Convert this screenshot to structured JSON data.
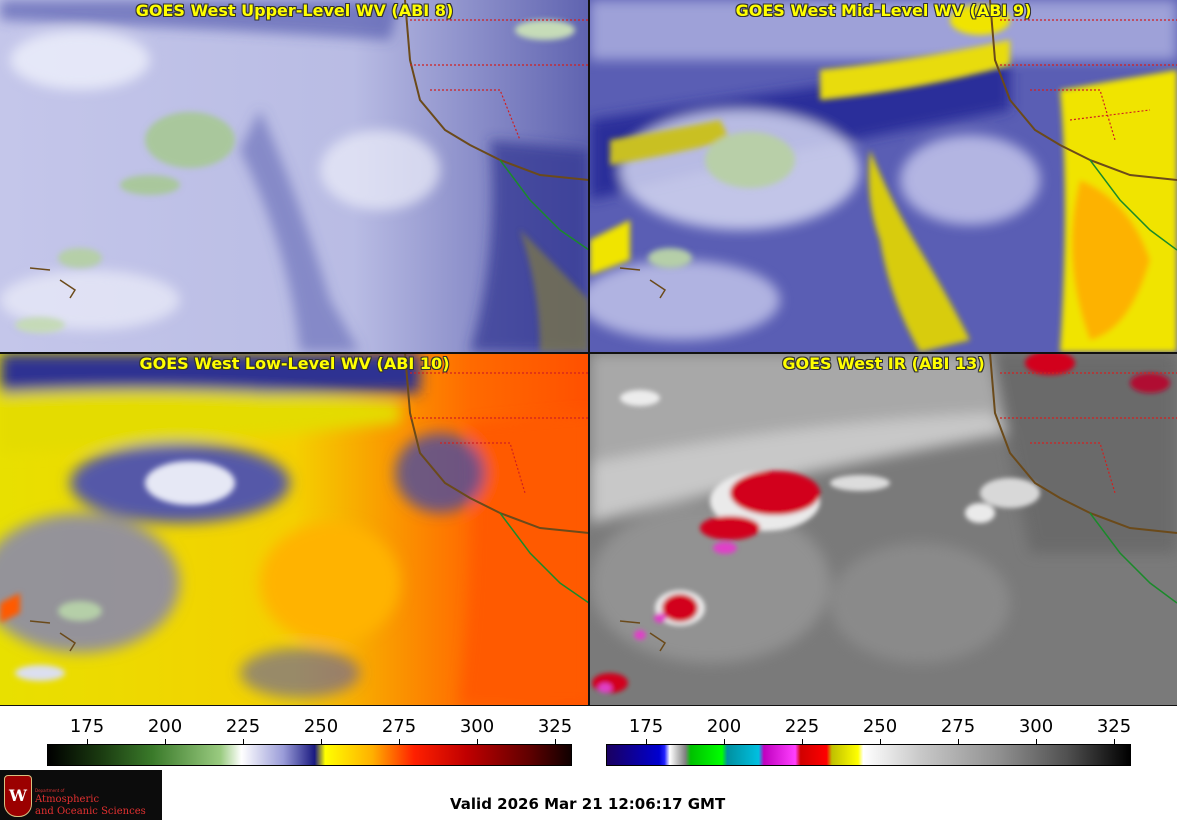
{
  "panels": [
    {
      "title": "GOES West Upper-Level WV (ABI 8)"
    },
    {
      "title": "GOES West Mid-Level WV (ABI 9)"
    },
    {
      "title": "GOES West Low-Level WV (ABI 10)"
    },
    {
      "title": "GOES West IR (ABI 13)"
    }
  ],
  "colorbars": [
    {
      "name": "water-vapor",
      "ticks": [
        "175",
        "200",
        "225",
        "250",
        "275",
        "300",
        "325"
      ]
    },
    {
      "name": "infrared",
      "ticks": [
        "175",
        "200",
        "225",
        "250",
        "275",
        "300",
        "325"
      ]
    }
  ],
  "valid_time": "Valid 2026 Mar 21 12:06:17 GMT",
  "logo": {
    "department": "Department of",
    "line1": "Atmospheric",
    "line2": "and Oceanic Sciences",
    "crest_letter": "W"
  }
}
